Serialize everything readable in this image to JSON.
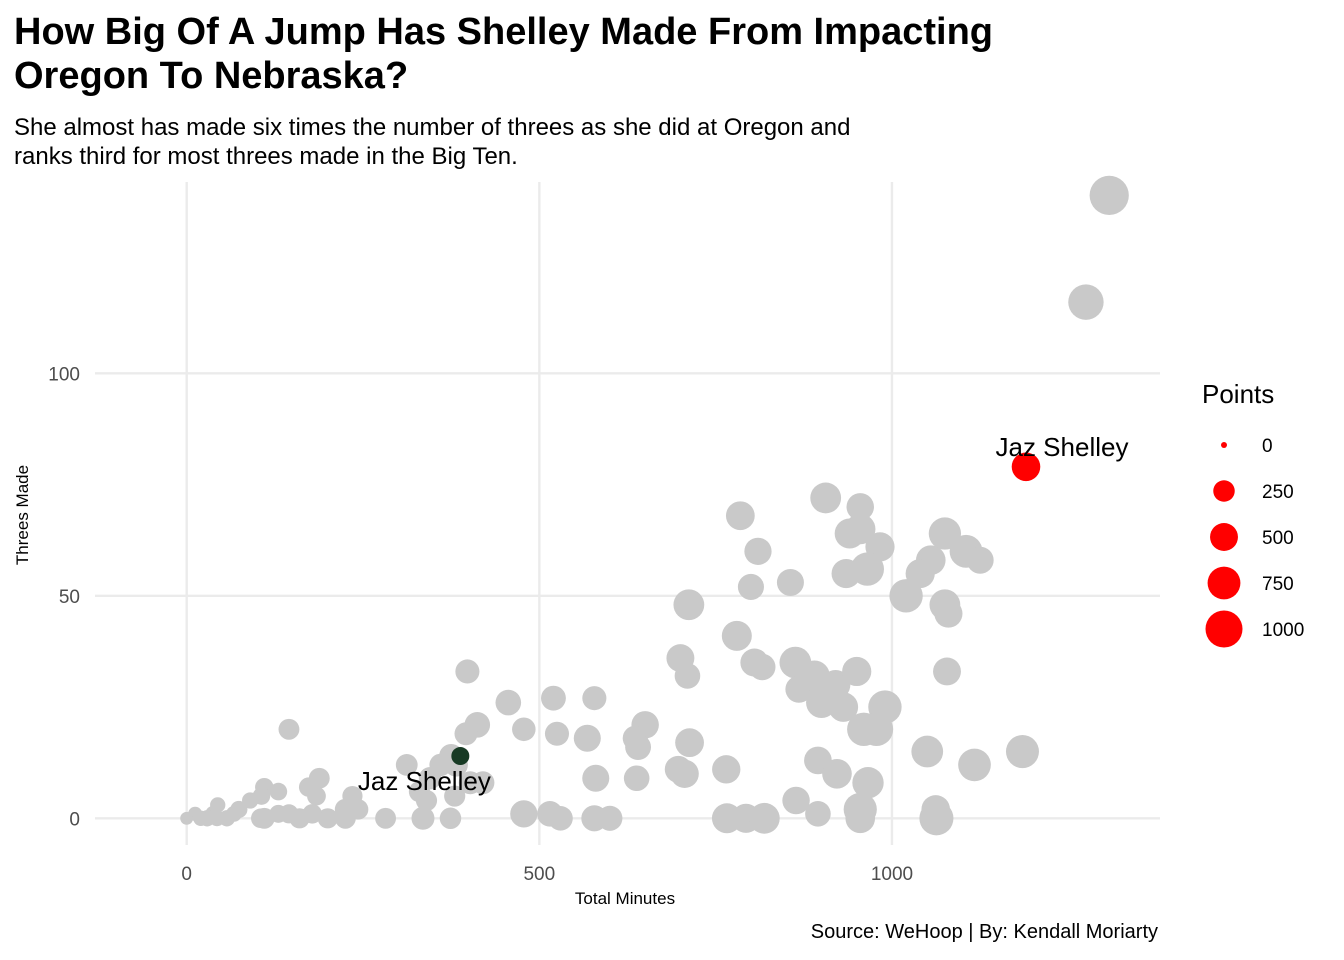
{
  "chart_data": {
    "type": "scatter",
    "title": "How Big Of A Jump Has Shelley Made From Impacting Oregon To Nebraska?",
    "subtitle": "She almost has made six times the number of threes as she did at Oregon and ranks third for most threes made in the Big Ten.",
    "xlabel": "Total Minutes",
    "ylabel": "Threes Made",
    "caption": "Source: WeHoop | By: Kendall Moriarty",
    "xlim": [
      -130,
      1380
    ],
    "ylim": [
      -6,
      143
    ],
    "x_ticks": [
      0,
      500,
      1000
    ],
    "y_ticks": [
      0,
      50,
      100
    ],
    "grid": true,
    "size_legend": {
      "title": "Points",
      "position": "right",
      "breaks": [
        0,
        250,
        500,
        750,
        1000
      ]
    },
    "colors": {
      "other": "#c9c9c9",
      "nebraska": "#ff0000",
      "oregon": "#173a24",
      "grid": "#ebebeb"
    },
    "highlights": [
      {
        "label": "Jaz Shelley",
        "x": 1190,
        "y": 79,
        "points": 530,
        "color": "#ff0000"
      },
      {
        "label": "Jaz Shelley",
        "x": 388,
        "y": 14,
        "points": 150,
        "color": "#173a24"
      }
    ],
    "points": [
      {
        "x": 1308,
        "y": 140,
        "points": 1150
      },
      {
        "x": 1275,
        "y": 116,
        "points": 900
      },
      {
        "x": 906,
        "y": 72,
        "points": 640
      },
      {
        "x": 955,
        "y": 70,
        "points": 480
      },
      {
        "x": 955,
        "y": 65,
        "points": 620
      },
      {
        "x": 940,
        "y": 64,
        "points": 600
      },
      {
        "x": 1075,
        "y": 64,
        "points": 720
      },
      {
        "x": 1105,
        "y": 60,
        "points": 750
      },
      {
        "x": 1125,
        "y": 58,
        "points": 460
      },
      {
        "x": 1055,
        "y": 58,
        "points": 580
      },
      {
        "x": 983,
        "y": 61,
        "points": 560
      },
      {
        "x": 965,
        "y": 56,
        "points": 780
      },
      {
        "x": 935,
        "y": 55,
        "points": 560
      },
      {
        "x": 1040,
        "y": 55,
        "points": 560
      },
      {
        "x": 1020,
        "y": 50,
        "points": 780
      },
      {
        "x": 1075,
        "y": 48,
        "points": 640
      },
      {
        "x": 1080,
        "y": 46,
        "points": 510
      },
      {
        "x": 1078,
        "y": 33,
        "points": 500
      },
      {
        "x": 785,
        "y": 68,
        "points": 540
      },
      {
        "x": 810,
        "y": 60,
        "points": 470
      },
      {
        "x": 800,
        "y": 52,
        "points": 420
      },
      {
        "x": 856,
        "y": 53,
        "points": 460
      },
      {
        "x": 712,
        "y": 48,
        "points": 640
      },
      {
        "x": 780,
        "y": 41,
        "points": 600
      },
      {
        "x": 700,
        "y": 36,
        "points": 500
      },
      {
        "x": 710,
        "y": 32,
        "points": 400
      },
      {
        "x": 805,
        "y": 35,
        "points": 510
      },
      {
        "x": 816,
        "y": 34,
        "points": 440
      },
      {
        "x": 863,
        "y": 35,
        "points": 690
      },
      {
        "x": 868,
        "y": 29,
        "points": 460
      },
      {
        "x": 890,
        "y": 32,
        "points": 640
      },
      {
        "x": 920,
        "y": 30,
        "points": 580
      },
      {
        "x": 900,
        "y": 26,
        "points": 640
      },
      {
        "x": 931,
        "y": 25,
        "points": 580
      },
      {
        "x": 950,
        "y": 33,
        "points": 560
      },
      {
        "x": 990,
        "y": 25,
        "points": 780
      },
      {
        "x": 960,
        "y": 20,
        "points": 780
      },
      {
        "x": 978,
        "y": 20,
        "points": 780
      },
      {
        "x": 1050,
        "y": 15,
        "points": 690
      },
      {
        "x": 1185,
        "y": 15,
        "points": 760
      },
      {
        "x": 1117,
        "y": 12,
        "points": 740
      },
      {
        "x": 895,
        "y": 13,
        "points": 490
      },
      {
        "x": 922,
        "y": 10,
        "points": 580
      },
      {
        "x": 966,
        "y": 8,
        "points": 670
      },
      {
        "x": 864,
        "y": 4,
        "points": 480
      },
      {
        "x": 955,
        "y": 2,
        "points": 770
      },
      {
        "x": 1062,
        "y": 2,
        "points": 530
      },
      {
        "x": 955,
        "y": 0,
        "points": 580
      },
      {
        "x": 1063,
        "y": 0,
        "points": 820
      },
      {
        "x": 895,
        "y": 1,
        "points": 400
      },
      {
        "x": 766,
        "y": 0,
        "points": 600
      },
      {
        "x": 793,
        "y": 0,
        "points": 560
      },
      {
        "x": 819,
        "y": 0,
        "points": 640
      },
      {
        "x": 765,
        "y": 11,
        "points": 520
      },
      {
        "x": 713,
        "y": 17,
        "points": 540
      },
      {
        "x": 697,
        "y": 11,
        "points": 460
      },
      {
        "x": 706,
        "y": 10,
        "points": 520
      },
      {
        "x": 650,
        "y": 21,
        "points": 480
      },
      {
        "x": 636,
        "y": 18,
        "points": 380
      },
      {
        "x": 640,
        "y": 16,
        "points": 410
      },
      {
        "x": 638,
        "y": 9,
        "points": 400
      },
      {
        "x": 568,
        "y": 18,
        "points": 460
      },
      {
        "x": 580,
        "y": 9,
        "points": 460
      },
      {
        "x": 578,
        "y": 27,
        "points": 340
      },
      {
        "x": 520,
        "y": 27,
        "points": 370
      },
      {
        "x": 525,
        "y": 19,
        "points": 340
      },
      {
        "x": 478,
        "y": 20,
        "points": 320
      },
      {
        "x": 456,
        "y": 26,
        "points": 400
      },
      {
        "x": 478,
        "y": 1,
        "points": 470
      },
      {
        "x": 515,
        "y": 1,
        "points": 400
      },
      {
        "x": 530,
        "y": 0,
        "points": 360
      },
      {
        "x": 578,
        "y": 0,
        "points": 420
      },
      {
        "x": 600,
        "y": 0,
        "points": 380
      },
      {
        "x": 398,
        "y": 33,
        "points": 340
      },
      {
        "x": 412,
        "y": 21,
        "points": 400
      },
      {
        "x": 396,
        "y": 19,
        "points": 300
      },
      {
        "x": 402,
        "y": 8,
        "points": 300
      },
      {
        "x": 382,
        "y": 12,
        "points": 320
      },
      {
        "x": 375,
        "y": 14,
        "points": 340
      },
      {
        "x": 420,
        "y": 8,
        "points": 300
      },
      {
        "x": 360,
        "y": 12,
        "points": 280
      },
      {
        "x": 312,
        "y": 12,
        "points": 260
      },
      {
        "x": 330,
        "y": 6,
        "points": 240
      },
      {
        "x": 340,
        "y": 4,
        "points": 240
      },
      {
        "x": 345,
        "y": 9,
        "points": 280
      },
      {
        "x": 380,
        "y": 5,
        "points": 240
      },
      {
        "x": 335,
        "y": 0,
        "points": 300
      },
      {
        "x": 374,
        "y": 0,
        "points": 250
      },
      {
        "x": 282,
        "y": 0,
        "points": 230
      },
      {
        "x": 235,
        "y": 5,
        "points": 210
      },
      {
        "x": 225,
        "y": 2,
        "points": 240
      },
      {
        "x": 243,
        "y": 2,
        "points": 220
      },
      {
        "x": 225,
        "y": 0,
        "points": 230
      },
      {
        "x": 200,
        "y": 0,
        "points": 210
      },
      {
        "x": 188,
        "y": 9,
        "points": 230
      },
      {
        "x": 173,
        "y": 7,
        "points": 190
      },
      {
        "x": 184,
        "y": 5,
        "points": 170
      },
      {
        "x": 178,
        "y": 1,
        "points": 190
      },
      {
        "x": 160,
        "y": 0,
        "points": 210
      },
      {
        "x": 145,
        "y": 1,
        "points": 180
      },
      {
        "x": 130,
        "y": 1,
        "points": 150
      },
      {
        "x": 145,
        "y": 20,
        "points": 230
      },
      {
        "x": 130,
        "y": 6,
        "points": 140
      },
      {
        "x": 110,
        "y": 7,
        "points": 160
      },
      {
        "x": 106,
        "y": 5,
        "points": 140
      },
      {
        "x": 90,
        "y": 4,
        "points": 110
      },
      {
        "x": 110,
        "y": 0,
        "points": 230
      },
      {
        "x": 105,
        "y": 0,
        "points": 190
      },
      {
        "x": 74,
        "y": 2,
        "points": 130
      },
      {
        "x": 67,
        "y": 1,
        "points": 100
      },
      {
        "x": 57,
        "y": 0,
        "points": 110
      },
      {
        "x": 44,
        "y": 3,
        "points": 90
      },
      {
        "x": 38,
        "y": 1,
        "points": 110
      },
      {
        "x": 43,
        "y": 0,
        "points": 100
      },
      {
        "x": 29,
        "y": 0,
        "points": 110
      },
      {
        "x": 20,
        "y": 0,
        "points": 90
      },
      {
        "x": 12,
        "y": 1,
        "points": 70
      },
      {
        "x": 0,
        "y": 0,
        "points": 50
      }
    ]
  }
}
